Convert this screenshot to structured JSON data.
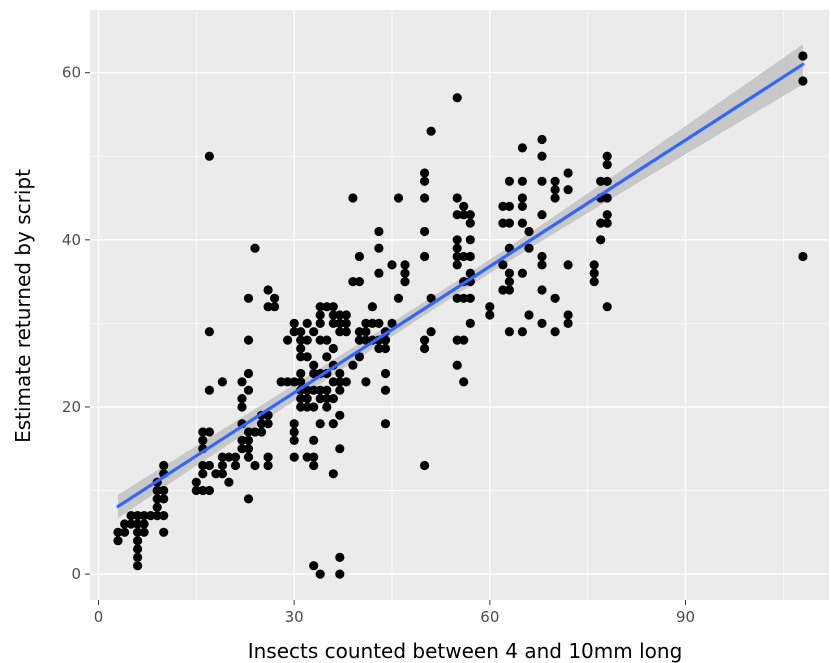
{
  "chart_data": {
    "type": "scatter",
    "title": "",
    "xlabel": "Insects counted between 4 and 10mm long",
    "ylabel": "Estimate returned by script",
    "xlim": [
      -1.3,
      112
    ],
    "ylim": [
      -3.1,
      67.5
    ],
    "x_ticks": [
      0,
      30,
      60,
      90
    ],
    "x_tick_labels": [
      "0",
      "30",
      "60",
      "90"
    ],
    "y_ticks": [
      0,
      20,
      40,
      60
    ],
    "y_tick_labels": [
      "0",
      "20",
      "40",
      "60"
    ],
    "grid": true,
    "legend": "none",
    "colors": {
      "panel": "#ebebeb",
      "grid": "#ffffff",
      "points": "#000000",
      "trend_line": "#3366ff",
      "confidence_band": "#c4c4c4"
    },
    "trend": {
      "method": "linear",
      "x": [
        3,
        108
      ],
      "y": [
        8.1,
        61.0
      ],
      "band_halfwidth_ends": [
        1.4,
        2.4
      ],
      "band_halfwidth_center": 0.8
    },
    "points": [
      [
        3,
        4
      ],
      [
        3,
        5
      ],
      [
        4,
        5
      ],
      [
        4,
        6
      ],
      [
        5,
        6
      ],
      [
        5,
        7
      ],
      [
        6,
        1
      ],
      [
        6,
        2
      ],
      [
        6,
        3
      ],
      [
        6,
        4
      ],
      [
        6,
        5
      ],
      [
        6,
        6
      ],
      [
        6,
        7
      ],
      [
        7,
        5
      ],
      [
        7,
        6
      ],
      [
        7,
        7
      ],
      [
        8,
        7
      ],
      [
        9,
        7
      ],
      [
        9,
        8
      ],
      [
        9,
        9
      ],
      [
        9,
        10
      ],
      [
        9,
        11
      ],
      [
        10,
        5
      ],
      [
        10,
        7
      ],
      [
        10,
        9
      ],
      [
        10,
        10
      ],
      [
        10,
        12
      ],
      [
        10,
        13
      ],
      [
        15,
        10
      ],
      [
        15,
        11
      ],
      [
        16,
        10
      ],
      [
        16,
        12
      ],
      [
        16,
        13
      ],
      [
        16,
        15
      ],
      [
        16,
        16
      ],
      [
        16,
        17
      ],
      [
        17,
        10
      ],
      [
        17,
        13
      ],
      [
        17,
        17
      ],
      [
        17,
        22
      ],
      [
        17,
        29
      ],
      [
        17,
        50
      ],
      [
        18,
        12
      ],
      [
        19,
        12
      ],
      [
        19,
        13
      ],
      [
        19,
        14
      ],
      [
        19,
        23
      ],
      [
        20,
        11
      ],
      [
        20,
        14
      ],
      [
        21,
        13
      ],
      [
        21,
        14
      ],
      [
        22,
        15
      ],
      [
        22,
        16
      ],
      [
        22,
        18
      ],
      [
        22,
        20
      ],
      [
        22,
        21
      ],
      [
        22,
        23
      ],
      [
        23,
        9
      ],
      [
        23,
        14
      ],
      [
        23,
        15
      ],
      [
        23,
        16
      ],
      [
        23,
        17
      ],
      [
        23,
        22
      ],
      [
        23,
        24
      ],
      [
        23,
        28
      ],
      [
        23,
        33
      ],
      [
        24,
        13
      ],
      [
        24,
        17
      ],
      [
        24,
        39
      ],
      [
        25,
        17
      ],
      [
        25,
        18
      ],
      [
        25,
        19
      ],
      [
        26,
        13
      ],
      [
        26,
        14
      ],
      [
        26,
        18
      ],
      [
        26,
        19
      ],
      [
        26,
        32
      ],
      [
        26,
        34
      ],
      [
        27,
        32
      ],
      [
        27,
        33
      ],
      [
        28,
        23
      ],
      [
        29,
        23
      ],
      [
        29,
        28
      ],
      [
        30,
        14
      ],
      [
        30,
        16
      ],
      [
        30,
        17
      ],
      [
        30,
        18
      ],
      [
        30,
        23
      ],
      [
        30,
        29
      ],
      [
        30,
        30
      ],
      [
        31,
        20
      ],
      [
        31,
        21
      ],
      [
        31,
        22
      ],
      [
        31,
        23
      ],
      [
        31,
        24
      ],
      [
        31,
        26
      ],
      [
        31,
        27
      ],
      [
        31,
        28
      ],
      [
        31,
        29
      ],
      [
        32,
        14
      ],
      [
        32,
        20
      ],
      [
        32,
        21
      ],
      [
        32,
        22
      ],
      [
        32,
        26
      ],
      [
        32,
        28
      ],
      [
        32,
        30
      ],
      [
        33,
        1
      ],
      [
        33,
        13
      ],
      [
        33,
        14
      ],
      [
        33,
        16
      ],
      [
        33,
        20
      ],
      [
        33,
        22
      ],
      [
        33,
        24
      ],
      [
        33,
        25
      ],
      [
        33,
        29
      ],
      [
        34,
        0
      ],
      [
        34,
        18
      ],
      [
        34,
        21
      ],
      [
        34,
        22
      ],
      [
        34,
        24
      ],
      [
        34,
        28
      ],
      [
        34,
        30
      ],
      [
        34,
        31
      ],
      [
        34,
        32
      ],
      [
        35,
        20
      ],
      [
        35,
        21
      ],
      [
        35,
        22
      ],
      [
        35,
        24
      ],
      [
        35,
        26
      ],
      [
        35,
        28
      ],
      [
        35,
        32
      ],
      [
        36,
        12
      ],
      [
        36,
        18
      ],
      [
        36,
        21
      ],
      [
        36,
        23
      ],
      [
        36,
        25
      ],
      [
        36,
        27
      ],
      [
        36,
        30
      ],
      [
        36,
        31
      ],
      [
        36,
        32
      ],
      [
        37,
        0
      ],
      [
        37,
        2
      ],
      [
        37,
        15
      ],
      [
        37,
        19
      ],
      [
        37,
        22
      ],
      [
        37,
        23
      ],
      [
        37,
        24
      ],
      [
        37,
        29
      ],
      [
        37,
        30
      ],
      [
        37,
        31
      ],
      [
        38,
        23
      ],
      [
        38,
        29
      ],
      [
        38,
        30
      ],
      [
        38,
        31
      ],
      [
        39,
        25
      ],
      [
        39,
        35
      ],
      [
        39,
        45
      ],
      [
        40,
        26
      ],
      [
        40,
        28
      ],
      [
        40,
        29
      ],
      [
        40,
        35
      ],
      [
        40,
        38
      ],
      [
        41,
        23
      ],
      [
        41,
        28
      ],
      [
        41,
        29
      ],
      [
        41,
        30
      ],
      [
        42,
        28
      ],
      [
        42,
        30
      ],
      [
        42,
        32
      ],
      [
        43,
        27
      ],
      [
        43,
        28
      ],
      [
        43,
        30
      ],
      [
        43,
        36
      ],
      [
        43,
        39
      ],
      [
        43,
        41
      ],
      [
        44,
        18
      ],
      [
        44,
        22
      ],
      [
        44,
        24
      ],
      [
        44,
        27
      ],
      [
        44,
        28
      ],
      [
        44,
        29
      ],
      [
        45,
        30
      ],
      [
        45,
        37
      ],
      [
        46,
        33
      ],
      [
        46,
        45
      ],
      [
        47,
        35
      ],
      [
        47,
        36
      ],
      [
        47,
        37
      ],
      [
        50,
        13
      ],
      [
        50,
        27
      ],
      [
        50,
        28
      ],
      [
        50,
        38
      ],
      [
        50,
        41
      ],
      [
        50,
        45
      ],
      [
        50,
        47
      ],
      [
        50,
        48
      ],
      [
        51,
        29
      ],
      [
        51,
        33
      ],
      [
        51,
        53
      ],
      [
        55,
        25
      ],
      [
        55,
        28
      ],
      [
        55,
        33
      ],
      [
        55,
        37
      ],
      [
        55,
        38
      ],
      [
        55,
        39
      ],
      [
        55,
        40
      ],
      [
        55,
        43
      ],
      [
        55,
        45
      ],
      [
        55,
        57
      ],
      [
        56,
        23
      ],
      [
        56,
        28
      ],
      [
        56,
        33
      ],
      [
        56,
        35
      ],
      [
        56,
        38
      ],
      [
        56,
        43
      ],
      [
        56,
        44
      ],
      [
        57,
        30
      ],
      [
        57,
        33
      ],
      [
        57,
        35
      ],
      [
        57,
        36
      ],
      [
        57,
        38
      ],
      [
        57,
        40
      ],
      [
        57,
        42
      ],
      [
        57,
        43
      ],
      [
        60,
        31
      ],
      [
        60,
        32
      ],
      [
        62,
        34
      ],
      [
        62,
        37
      ],
      [
        62,
        42
      ],
      [
        62,
        44
      ],
      [
        63,
        29
      ],
      [
        63,
        34
      ],
      [
        63,
        35
      ],
      [
        63,
        36
      ],
      [
        63,
        39
      ],
      [
        63,
        42
      ],
      [
        63,
        44
      ],
      [
        63,
        47
      ],
      [
        65,
        29
      ],
      [
        65,
        36
      ],
      [
        65,
        42
      ],
      [
        65,
        44
      ],
      [
        65,
        45
      ],
      [
        65,
        47
      ],
      [
        65,
        51
      ],
      [
        66,
        31
      ],
      [
        66,
        39
      ],
      [
        66,
        41
      ],
      [
        68,
        30
      ],
      [
        68,
        34
      ],
      [
        68,
        37
      ],
      [
        68,
        38
      ],
      [
        68,
        43
      ],
      [
        68,
        47
      ],
      [
        68,
        50
      ],
      [
        68,
        52
      ],
      [
        70,
        29
      ],
      [
        70,
        33
      ],
      [
        70,
        45
      ],
      [
        70,
        46
      ],
      [
        70,
        47
      ],
      [
        72,
        30
      ],
      [
        72,
        31
      ],
      [
        72,
        37
      ],
      [
        72,
        46
      ],
      [
        72,
        48
      ],
      [
        76,
        35
      ],
      [
        76,
        36
      ],
      [
        76,
        37
      ],
      [
        77,
        40
      ],
      [
        77,
        42
      ],
      [
        77,
        45
      ],
      [
        77,
        47
      ],
      [
        78,
        32
      ],
      [
        78,
        42
      ],
      [
        78,
        43
      ],
      [
        78,
        45
      ],
      [
        78,
        47
      ],
      [
        78,
        49
      ],
      [
        78,
        50
      ],
      [
        108,
        38
      ],
      [
        108,
        59
      ],
      [
        108,
        62
      ]
    ]
  }
}
